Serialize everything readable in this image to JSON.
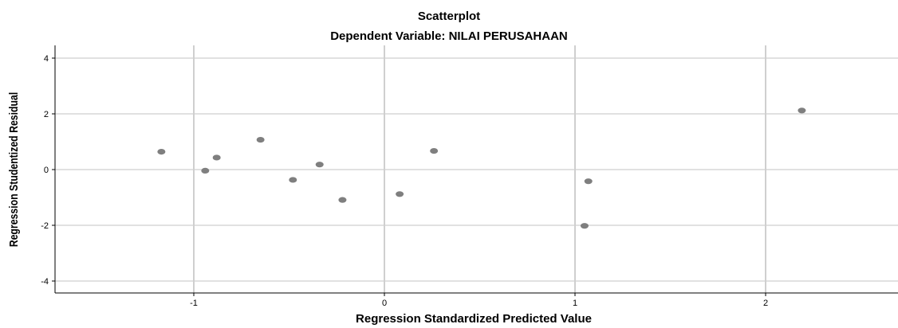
{
  "chart_data": {
    "type": "scatter",
    "title": "Scatterplot",
    "subtitle": "Dependent Variable: NILAI PERUSAHAAN",
    "xlabel": "Regression Standardized Predicted Value",
    "ylabel": "Regression Studentized Residual",
    "xlim": [
      -1.7,
      2.65
    ],
    "ylim": [
      -4.4,
      4.3
    ],
    "x_ticks": [
      -1,
      0,
      1,
      2
    ],
    "y_ticks": [
      -4,
      -2,
      0,
      2,
      4
    ],
    "x_tick_labels": [
      "-1",
      "0",
      "1",
      "2"
    ],
    "y_tick_labels": [
      "-4",
      "-2",
      "0",
      "2",
      "4"
    ],
    "grid": true,
    "x": [
      -1.17,
      -0.94,
      -0.88,
      -0.65,
      -0.48,
      -0.34,
      -0.22,
      0.08,
      0.26,
      1.05,
      1.07,
      2.19
    ],
    "y": [
      0.64,
      -0.04,
      0.43,
      1.07,
      -0.37,
      0.18,
      -1.09,
      -0.88,
      0.67,
      -2.02,
      -0.42,
      2.12
    ],
    "colors": {
      "point": "#7f7f7f",
      "grid": "#cfcfcf",
      "axis": "#000000"
    }
  }
}
